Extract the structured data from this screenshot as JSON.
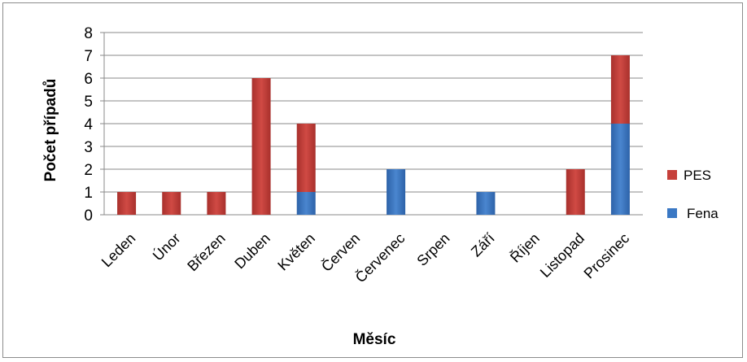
{
  "chart_data": {
    "type": "bar",
    "stacked": true,
    "title": "",
    "xlabel": "Měsíc",
    "ylabel": "Počet případů",
    "ylim": [
      0,
      8
    ],
    "yticks": [
      "0",
      "1",
      "2",
      "3",
      "4",
      "5",
      "6",
      "7",
      "8"
    ],
    "grid": true,
    "legend_position": "right",
    "categories": [
      "Leden",
      "Únor",
      "Březen",
      "Duben",
      "Květen",
      "Červen",
      "Červenec",
      "Srpen",
      "Září",
      "Říjen",
      "Listopad",
      "Prosinec"
    ],
    "series": [
      {
        "name": "Fena",
        "color": "#3a78c4",
        "values": [
          0,
          0,
          0,
          0,
          1,
          0,
          2,
          0,
          1,
          0,
          0,
          4
        ]
      },
      {
        "name": "PES",
        "color": "#c6403b",
        "values": [
          1,
          1,
          1,
          6,
          3,
          0,
          0,
          0,
          0,
          0,
          2,
          3
        ]
      }
    ],
    "legend": [
      {
        "name": "PES",
        "color": "#c6403b"
      },
      {
        "name": "Fena",
        "color": "#3a78c4"
      }
    ]
  }
}
